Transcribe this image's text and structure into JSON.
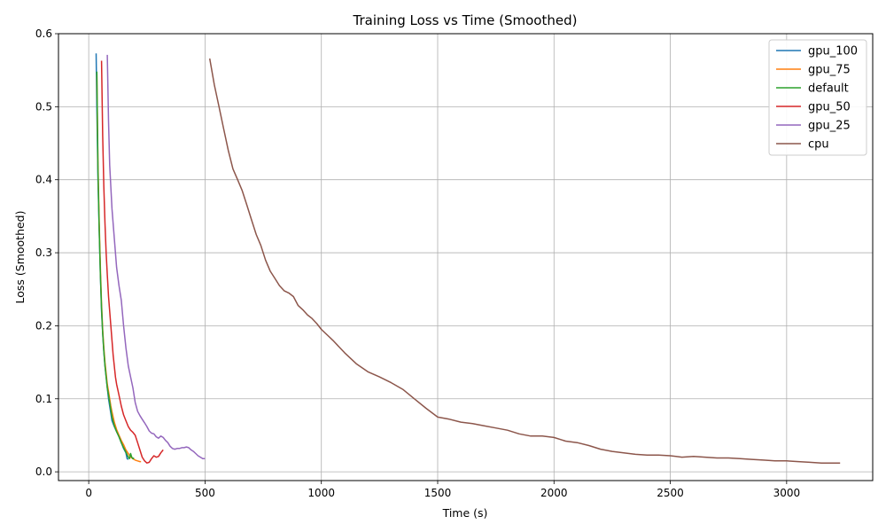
{
  "chart_data": {
    "type": "line",
    "title": "Training Loss vs Time (Smoothed)",
    "xlabel": "Time (s)",
    "ylabel": "Loss (Smoothed)",
    "xlim": [
      -130,
      3370
    ],
    "ylim": [
      -0.012,
      0.6
    ],
    "xticks": [
      0,
      500,
      1000,
      1500,
      2000,
      2500,
      3000
    ],
    "yticks": [
      0.0,
      0.1,
      0.2,
      0.3,
      0.4,
      0.5,
      0.6
    ],
    "xtick_labels": [
      "0",
      "500",
      "1000",
      "1500",
      "2000",
      "2500",
      "3000"
    ],
    "ytick_labels": [
      "0.0",
      "0.1",
      "0.2",
      "0.3",
      "0.4",
      "0.5",
      "0.6"
    ],
    "grid": true,
    "legend_position": "top-right",
    "series": [
      {
        "name": "gpu_100",
        "color": "#1f77b4",
        "x": [
          32,
          35,
          40,
          45,
          50,
          55,
          60,
          65,
          70,
          75,
          80,
          85,
          90,
          95,
          100,
          110,
          120,
          130,
          140,
          150,
          160,
          165,
          170
        ],
        "y": [
          0.573,
          0.5,
          0.4,
          0.33,
          0.27,
          0.22,
          0.19,
          0.165,
          0.145,
          0.13,
          0.115,
          0.1,
          0.09,
          0.08,
          0.07,
          0.062,
          0.055,
          0.048,
          0.04,
          0.032,
          0.026,
          0.018,
          0.017
        ]
      },
      {
        "name": "gpu_75",
        "color": "#ff7f0e",
        "x": [
          35,
          40,
          45,
          50,
          55,
          60,
          65,
          70,
          75,
          80,
          85,
          90,
          95,
          100,
          110,
          120,
          130,
          140,
          150,
          160,
          170,
          180,
          190,
          200,
          210,
          220,
          225
        ],
        "y": [
          0.545,
          0.42,
          0.34,
          0.28,
          0.23,
          0.195,
          0.17,
          0.15,
          0.135,
          0.12,
          0.11,
          0.1,
          0.09,
          0.082,
          0.068,
          0.058,
          0.05,
          0.043,
          0.037,
          0.03,
          0.025,
          0.02,
          0.018,
          0.016,
          0.015,
          0.014,
          0.014
        ]
      },
      {
        "name": "default",
        "color": "#2ca02c",
        "x": [
          35,
          40,
          45,
          50,
          55,
          60,
          65,
          70,
          75,
          80,
          85,
          90,
          95,
          100,
          110,
          120,
          130,
          140,
          150,
          160,
          170,
          175,
          180,
          185,
          190,
          195
        ],
        "y": [
          0.548,
          0.41,
          0.33,
          0.27,
          0.225,
          0.19,
          0.165,
          0.145,
          0.13,
          0.115,
          0.105,
          0.095,
          0.085,
          0.075,
          0.063,
          0.055,
          0.048,
          0.04,
          0.033,
          0.027,
          0.02,
          0.018,
          0.025,
          0.02,
          0.018,
          0.019
        ]
      },
      {
        "name": "gpu_50",
        "color": "#d62728",
        "x": [
          55,
          60,
          65,
          70,
          75,
          80,
          85,
          90,
          95,
          100,
          105,
          110,
          115,
          120,
          130,
          140,
          150,
          160,
          170,
          180,
          190,
          200,
          210,
          220,
          230,
          240,
          250,
          260,
          270,
          280,
          290,
          300,
          310,
          320
        ],
        "y": [
          0.563,
          0.46,
          0.39,
          0.34,
          0.3,
          0.27,
          0.24,
          0.22,
          0.2,
          0.18,
          0.16,
          0.145,
          0.13,
          0.12,
          0.105,
          0.09,
          0.078,
          0.07,
          0.062,
          0.057,
          0.054,
          0.05,
          0.04,
          0.03,
          0.02,
          0.015,
          0.012,
          0.013,
          0.018,
          0.022,
          0.02,
          0.021,
          0.026,
          0.03
        ]
      },
      {
        "name": "gpu_25",
        "color": "#9467bd",
        "x": [
          80,
          85,
          90,
          95,
          100,
          105,
          110,
          115,
          120,
          130,
          140,
          150,
          160,
          170,
          180,
          190,
          200,
          210,
          220,
          230,
          240,
          250,
          260,
          270,
          280,
          290,
          300,
          310,
          320,
          330,
          340,
          350,
          360,
          370,
          380,
          390,
          400,
          410,
          420,
          430,
          440,
          450,
          460,
          470,
          480,
          490,
          500
        ],
        "y": [
          0.571,
          0.48,
          0.42,
          0.39,
          0.36,
          0.34,
          0.32,
          0.3,
          0.28,
          0.255,
          0.235,
          0.2,
          0.17,
          0.145,
          0.13,
          0.115,
          0.095,
          0.083,
          0.077,
          0.072,
          0.067,
          0.062,
          0.056,
          0.053,
          0.052,
          0.048,
          0.046,
          0.049,
          0.047,
          0.043,
          0.04,
          0.035,
          0.032,
          0.031,
          0.032,
          0.032,
          0.033,
          0.033,
          0.034,
          0.033,
          0.03,
          0.028,
          0.025,
          0.022,
          0.02,
          0.018,
          0.018
        ]
      },
      {
        "name": "cpu",
        "color": "#8c564b",
        "x": [
          520,
          540,
          560,
          580,
          600,
          620,
          640,
          660,
          680,
          700,
          720,
          740,
          760,
          780,
          800,
          820,
          840,
          860,
          880,
          900,
          920,
          940,
          960,
          980,
          1000,
          1050,
          1100,
          1150,
          1200,
          1250,
          1300,
          1350,
          1400,
          1450,
          1500,
          1550,
          1600,
          1650,
          1700,
          1750,
          1800,
          1850,
          1900,
          1950,
          2000,
          2050,
          2100,
          2150,
          2200,
          2250,
          2300,
          2350,
          2400,
          2450,
          2500,
          2550,
          2600,
          2650,
          2700,
          2750,
          2800,
          2850,
          2900,
          2950,
          3000,
          3050,
          3100,
          3150,
          3200,
          3230
        ],
        "y": [
          0.566,
          0.53,
          0.5,
          0.47,
          0.44,
          0.415,
          0.4,
          0.385,
          0.365,
          0.345,
          0.325,
          0.31,
          0.29,
          0.275,
          0.265,
          0.255,
          0.248,
          0.245,
          0.24,
          0.228,
          0.222,
          0.215,
          0.21,
          0.203,
          0.195,
          0.18,
          0.163,
          0.148,
          0.137,
          0.13,
          0.122,
          0.113,
          0.1,
          0.087,
          0.075,
          0.072,
          0.068,
          0.066,
          0.063,
          0.06,
          0.057,
          0.052,
          0.049,
          0.049,
          0.047,
          0.042,
          0.04,
          0.036,
          0.031,
          0.028,
          0.026,
          0.024,
          0.023,
          0.023,
          0.022,
          0.02,
          0.021,
          0.02,
          0.019,
          0.019,
          0.018,
          0.017,
          0.016,
          0.015,
          0.015,
          0.014,
          0.013,
          0.012,
          0.012,
          0.012
        ]
      }
    ]
  }
}
